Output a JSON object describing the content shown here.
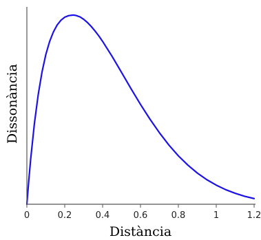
{
  "chart_data": {
    "type": "line",
    "title": "",
    "xlabel": "Distància",
    "ylabel": "Dissonància",
    "xlim": [
      0,
      1.2
    ],
    "ylim": [
      0,
      1
    ],
    "x_ticks": [
      0,
      0.2,
      0.4,
      0.6,
      0.8,
      1,
      1.2
    ],
    "x_tick_labels": [
      "0",
      "0.2",
      "0.4",
      "0.6",
      "0.8",
      "1",
      "1.2"
    ],
    "y_ticks_shown": false,
    "grid": false,
    "legend": "none",
    "series": [
      {
        "color": "#1a12e6",
        "x": [
          0,
          0.01,
          0.02,
          0.04,
          0.06,
          0.08,
          0.1,
          0.12,
          0.14,
          0.16,
          0.18,
          0.2,
          0.22,
          0.24,
          0.25,
          0.26,
          0.28,
          0.3,
          0.32,
          0.34,
          0.36,
          0.38,
          0.4,
          0.45,
          0.5,
          0.55,
          0.6,
          0.65,
          0.7,
          0.75,
          0.8,
          0.85,
          0.9,
          0.95,
          1.0,
          1.05,
          1.1,
          1.15,
          1.2
        ],
        "y": [
          0,
          0.124,
          0.237,
          0.428,
          0.58,
          0.699,
          0.791,
          0.86,
          0.911,
          0.948,
          0.973,
          0.989,
          0.997,
          1.0,
          1.0,
          0.998,
          0.991,
          0.978,
          0.961,
          0.94,
          0.916,
          0.89,
          0.861,
          0.782,
          0.697,
          0.611,
          0.528,
          0.45,
          0.378,
          0.313,
          0.256,
          0.207,
          0.165,
          0.13,
          0.101,
          0.077,
          0.058,
          0.042,
          0.03
        ]
      }
    ]
  }
}
